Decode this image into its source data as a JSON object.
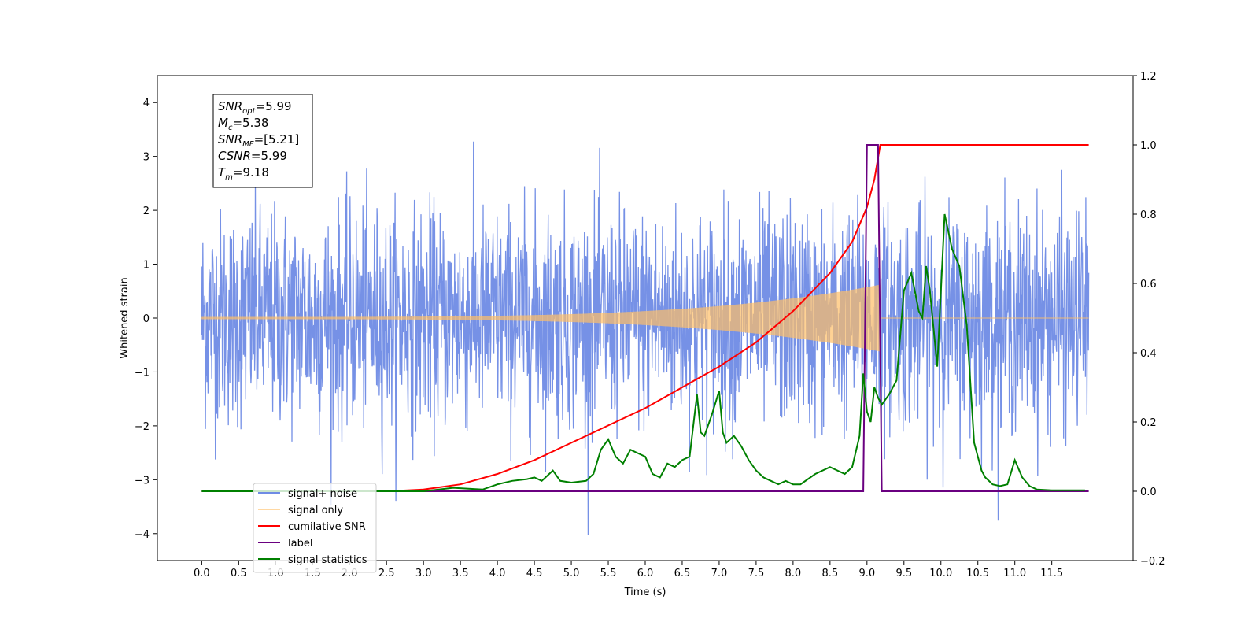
{
  "chart_data": {
    "type": "line",
    "xlabel": "Time (s)",
    "ylabel": "Whitened strain",
    "xlim": [
      -0.6,
      12.6
    ],
    "ylim": [
      -4.5,
      4.5
    ],
    "y2lim": [
      -0.2,
      1.2
    ],
    "x_ticks": [
      "0.0",
      "0.5",
      "1.0",
      "1.5",
      "2.0",
      "2.5",
      "3.0",
      "3.5",
      "4.0",
      "4.5",
      "5.0",
      "5.5",
      "6.0",
      "6.5",
      "7.0",
      "7.5",
      "8.0",
      "8.5",
      "9.0",
      "9.5",
      "10.0",
      "10.5",
      "11.0",
      "11.5"
    ],
    "y_ticks": [
      "−4",
      "−3",
      "−2",
      "−1",
      "0",
      "1",
      "2",
      "3",
      "4"
    ],
    "y2_ticks": [
      "−0.2",
      "0.0",
      "0.2",
      "0.4",
      "0.6",
      "0.8",
      "1.0",
      "1.2"
    ],
    "legend_position": "lower-left",
    "annotation": [
      {
        "name": "SNR",
        "sub": "opt",
        "value": "=5.99"
      },
      {
        "name": "M",
        "sub": "c",
        "value": "=5.38"
      },
      {
        "name": "SNR",
        "sub": "MF",
        "value": "=[5.21]"
      },
      {
        "name": "CSNR",
        "sub": "",
        "value": "=5.99"
      },
      {
        "name": "T",
        "sub": "m",
        "value": "=9.18"
      }
    ],
    "series": [
      {
        "name": "signal+ noise",
        "color": "#6f8be5",
        "axis": "left",
        "kind": "gaussian-noise",
        "x_range": [
          0.0,
          12.0
        ],
        "std": 1.0
      },
      {
        "name": "signal only",
        "color": "#ffbf66",
        "axis": "left",
        "kind": "chirp",
        "x_range": [
          0.0,
          9.18
        ],
        "peak_amplitude": 0.6
      },
      {
        "name": "cumilative SNR",
        "color": "#ff0000",
        "axis": "right",
        "x": [
          0.0,
          2.5,
          3.0,
          3.5,
          4.0,
          4.5,
          5.0,
          5.5,
          6.0,
          6.5,
          7.0,
          7.5,
          8.0,
          8.5,
          8.8,
          9.0,
          9.1,
          9.18,
          12.0
        ],
        "values": [
          0.0,
          0.0,
          0.005,
          0.02,
          0.05,
          0.09,
          0.14,
          0.19,
          0.24,
          0.3,
          0.36,
          0.43,
          0.52,
          0.63,
          0.72,
          0.82,
          0.9,
          1.0,
          1.0
        ]
      },
      {
        "name": "label",
        "color": "#6a0080",
        "axis": "right",
        "x": [
          0.0,
          8.95,
          9.0,
          9.15,
          9.2,
          12.0
        ],
        "values": [
          0.0,
          0.0,
          1.0,
          1.0,
          0.0,
          0.0
        ]
      },
      {
        "name": "signal statistics",
        "color": "#008000",
        "axis": "right",
        "x": [
          0.0,
          3.0,
          3.4,
          3.8,
          4.0,
          4.2,
          4.4,
          4.5,
          4.6,
          4.75,
          4.85,
          5.0,
          5.2,
          5.3,
          5.4,
          5.5,
          5.6,
          5.7,
          5.8,
          5.9,
          6.0,
          6.1,
          6.2,
          6.3,
          6.4,
          6.5,
          6.6,
          6.7,
          6.75,
          6.8,
          6.9,
          7.0,
          7.05,
          7.1,
          7.2,
          7.3,
          7.4,
          7.5,
          7.6,
          7.7,
          7.8,
          7.9,
          8.0,
          8.1,
          8.3,
          8.5,
          8.6,
          8.7,
          8.8,
          8.9,
          8.95,
          9.0,
          9.05,
          9.1,
          9.15,
          9.2,
          9.3,
          9.4,
          9.5,
          9.6,
          9.7,
          9.75,
          9.8,
          9.85,
          9.95,
          10.05,
          10.15,
          10.25,
          10.35,
          10.45,
          10.55,
          10.6,
          10.7,
          10.8,
          10.9,
          11.0,
          11.1,
          11.2,
          11.3,
          11.5,
          11.6,
          11.7,
          11.95
        ],
        "values": [
          0.0,
          0.0,
          0.01,
          0.005,
          0.02,
          0.03,
          0.035,
          0.04,
          0.03,
          0.06,
          0.03,
          0.025,
          0.03,
          0.05,
          0.12,
          0.15,
          0.1,
          0.08,
          0.12,
          0.11,
          0.1,
          0.05,
          0.04,
          0.08,
          0.07,
          0.09,
          0.1,
          0.28,
          0.17,
          0.16,
          0.22,
          0.29,
          0.17,
          0.14,
          0.16,
          0.13,
          0.09,
          0.06,
          0.04,
          0.03,
          0.02,
          0.03,
          0.02,
          0.02,
          0.05,
          0.07,
          0.06,
          0.05,
          0.07,
          0.16,
          0.34,
          0.23,
          0.2,
          0.3,
          0.27,
          0.25,
          0.28,
          0.32,
          0.58,
          0.63,
          0.52,
          0.5,
          0.65,
          0.58,
          0.36,
          0.8,
          0.7,
          0.65,
          0.48,
          0.14,
          0.06,
          0.04,
          0.02,
          0.015,
          0.02,
          0.09,
          0.04,
          0.015,
          0.005,
          0.003,
          0.003,
          0.003,
          0.003
        ]
      }
    ]
  }
}
